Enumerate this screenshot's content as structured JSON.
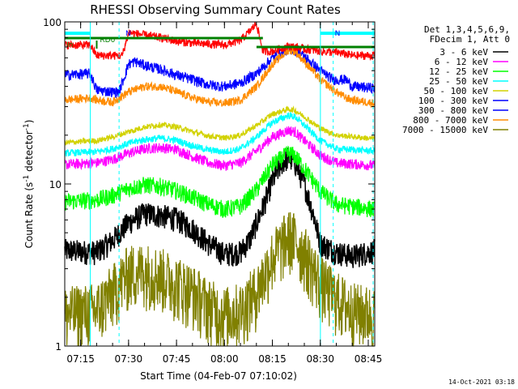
{
  "chart_data": {
    "type": "line",
    "title": "RHESSI Observing Summary Count Rates",
    "xlabel": "Start Time (04-Feb-07 07:10:02)",
    "ylabel": "Count Rate (s",
    "ylabel_sup": "-1",
    "ylabel_mid": " detector",
    "ylabel_end": ")",
    "yscale": "log",
    "ylim": [
      1,
      100
    ],
    "y_tick_labels": [
      "1",
      "10",
      "100"
    ],
    "xlim_minutes": [
      0,
      97
    ],
    "x_tick_labels": [
      "07:15",
      "07:30",
      "07:45",
      "08:00",
      "08:15",
      "08:30",
      "08:45"
    ],
    "x_tick_minutes": [
      4.97,
      19.97,
      34.97,
      49.97,
      64.97,
      79.97,
      94.97
    ],
    "legend_header": [
      "Det 1,3,4,5,6,9,",
      "FDecim 1, Att 0"
    ],
    "series": [
      {
        "name": "3 - 6 keV",
        "color": "#000000",
        "points": [
          [
            0,
            3.9
          ],
          [
            10,
            3.8
          ],
          [
            15,
            4.5
          ],
          [
            20,
            5.8
          ],
          [
            25,
            6.6
          ],
          [
            30,
            6.4
          ],
          [
            35,
            6.1
          ],
          [
            40,
            5.3
          ],
          [
            45,
            4.3
          ],
          [
            50,
            3.7
          ],
          [
            55,
            3.8
          ],
          [
            58,
            4.6
          ],
          [
            62,
            7.2
          ],
          [
            65,
            10.5
          ],
          [
            68,
            13.6
          ],
          [
            70,
            14.6
          ],
          [
            72,
            13.6
          ],
          [
            75,
            10
          ],
          [
            78,
            6.3
          ],
          [
            80,
            4.3
          ],
          [
            85,
            3.8
          ],
          [
            90,
            3.6
          ],
          [
            97,
            3.9
          ]
        ]
      },
      {
        "name": "6 - 12 keV",
        "color": "#ff00ff",
        "points": [
          [
            0,
            13.2
          ],
          [
            10,
            13.5
          ],
          [
            15,
            14.2
          ],
          [
            20,
            15.5
          ],
          [
            25,
            16.5
          ],
          [
            30,
            16.8
          ],
          [
            35,
            16.3
          ],
          [
            40,
            14.8
          ],
          [
            45,
            13.5
          ],
          [
            50,
            13
          ],
          [
            55,
            13.5
          ],
          [
            60,
            16
          ],
          [
            65,
            19.5
          ],
          [
            70,
            21.5
          ],
          [
            72,
            21
          ],
          [
            75,
            18.5
          ],
          [
            80,
            15
          ],
          [
            85,
            13.5
          ],
          [
            97,
            13
          ]
        ]
      },
      {
        "name": "12 - 25 keV",
        "color": "#00ff00",
        "points": [
          [
            0,
            7.8
          ],
          [
            10,
            8
          ],
          [
            15,
            8.5
          ],
          [
            20,
            9.4
          ],
          [
            25,
            9.9
          ],
          [
            30,
            9.7
          ],
          [
            35,
            9.1
          ],
          [
            40,
            8.3
          ],
          [
            45,
            7.5
          ],
          [
            50,
            7
          ],
          [
            55,
            7.3
          ],
          [
            60,
            9.2
          ],
          [
            65,
            13.2
          ],
          [
            70,
            15.5
          ],
          [
            72,
            15
          ],
          [
            75,
            12.5
          ],
          [
            80,
            9
          ],
          [
            85,
            7.5
          ],
          [
            97,
            7
          ]
        ]
      },
      {
        "name": "25 - 50 keV",
        "color": "#00ffff",
        "points": [
          [
            0,
            15.5
          ],
          [
            10,
            15.8
          ],
          [
            15,
            16.5
          ],
          [
            20,
            17.8
          ],
          [
            25,
            18.8
          ],
          [
            30,
            19.2
          ],
          [
            35,
            18.6
          ],
          [
            40,
            17.2
          ],
          [
            45,
            16.2
          ],
          [
            50,
            15.8
          ],
          [
            55,
            16.5
          ],
          [
            60,
            19.5
          ],
          [
            65,
            24
          ],
          [
            70,
            26.5
          ],
          [
            72,
            26
          ],
          [
            75,
            23
          ],
          [
            80,
            18.5
          ],
          [
            85,
            16.5
          ],
          [
            97,
            16
          ]
        ]
      },
      {
        "name": "50 - 100 keV",
        "color": "#d2d200",
        "points": [
          [
            0,
            18
          ],
          [
            10,
            18.5
          ],
          [
            15,
            19.5
          ],
          [
            20,
            21
          ],
          [
            25,
            22.5
          ],
          [
            30,
            23.2
          ],
          [
            35,
            22.5
          ],
          [
            40,
            21
          ],
          [
            45,
            19.8
          ],
          [
            50,
            19.2
          ],
          [
            55,
            20
          ],
          [
            60,
            23
          ],
          [
            65,
            27
          ],
          [
            70,
            29
          ],
          [
            72,
            28.5
          ],
          [
            75,
            26
          ],
          [
            80,
            22
          ],
          [
            85,
            20
          ],
          [
            97,
            19
          ]
        ]
      },
      {
        "name": "100 - 300 keV",
        "color": "#0000ff",
        "points": [
          [
            0,
            47
          ],
          [
            8,
            48
          ],
          [
            10,
            38
          ],
          [
            15,
            37
          ],
          [
            17,
            37
          ],
          [
            20,
            55
          ],
          [
            22,
            57
          ],
          [
            25,
            54
          ],
          [
            30,
            51
          ],
          [
            35,
            47
          ],
          [
            40,
            44
          ],
          [
            45,
            41
          ],
          [
            50,
            40
          ],
          [
            55,
            42
          ],
          [
            60,
            48
          ],
          [
            65,
            60
          ],
          [
            70,
            68
          ],
          [
            72,
            67
          ],
          [
            75,
            61
          ],
          [
            80,
            50
          ],
          [
            84,
            44
          ],
          [
            85,
            44
          ],
          [
            88,
            44
          ],
          [
            90,
            40
          ],
          [
            97,
            39
          ]
        ]
      },
      {
        "name": "300 - 800 keV",
        "color": "#0000ff",
        "points": [
          [
            0,
            42
          ],
          [
            97,
            42
          ]
        ]
      },
      {
        "name": "800 - 7000 keV",
        "color": "#ff8c00",
        "points": [
          [
            0,
            33
          ],
          [
            8,
            34
          ],
          [
            10,
            33
          ],
          [
            15,
            32
          ],
          [
            20,
            37
          ],
          [
            25,
            40
          ],
          [
            30,
            40
          ],
          [
            35,
            37
          ],
          [
            40,
            34
          ],
          [
            45,
            32
          ],
          [
            50,
            31.5
          ],
          [
            55,
            33
          ],
          [
            60,
            40
          ],
          [
            65,
            55
          ],
          [
            70,
            67
          ],
          [
            72,
            66
          ],
          [
            75,
            57
          ],
          [
            80,
            44
          ],
          [
            85,
            37
          ],
          [
            88,
            34
          ],
          [
            90,
            33
          ],
          [
            97,
            31.5
          ]
        ]
      },
      {
        "name": "7000 - 15000 keV",
        "color": "#808000",
        "points": [
          [
            0,
            1.6
          ],
          [
            10,
            1.7
          ],
          [
            15,
            2.2
          ],
          [
            20,
            2.9
          ],
          [
            25,
            3
          ],
          [
            30,
            2.8
          ],
          [
            35,
            2.5
          ],
          [
            40,
            2.2
          ],
          [
            45,
            1.8
          ],
          [
            50,
            1.6
          ],
          [
            55,
            1.7
          ],
          [
            60,
            2.2
          ],
          [
            65,
            3.6
          ],
          [
            70,
            4.8
          ],
          [
            72,
            4.6
          ],
          [
            75,
            3.8
          ],
          [
            80,
            2.5
          ],
          [
            85,
            2
          ],
          [
            90,
            1.7
          ],
          [
            97,
            1.6
          ]
        ]
      }
    ],
    "red_top": {
      "name": "red",
      "color": "#ff0000",
      "points": [
        [
          0,
          72
        ],
        [
          8,
          72
        ],
        [
          10,
          62
        ],
        [
          18,
          62
        ],
        [
          20,
          86
        ],
        [
          25,
          83
        ],
        [
          30,
          80
        ],
        [
          35,
          76
        ],
        [
          40,
          74
        ],
        [
          45,
          73
        ],
        [
          50,
          72
        ],
        [
          55,
          77
        ],
        [
          58,
          88
        ],
        [
          60,
          98
        ],
        [
          62,
          66
        ],
        [
          65,
          66
        ],
        [
          70,
          71
        ],
        [
          72,
          70
        ],
        [
          75,
          68
        ],
        [
          80,
          66
        ],
        [
          84,
          65
        ],
        [
          85,
          65
        ],
        [
          90,
          62
        ],
        [
          97,
          62
        ]
      ]
    },
    "annotations": {
      "rd0": "RD0",
      "n": "N",
      "in": "In",
      "n2": "N"
    },
    "footer_date": "14-Oct-2021 03:18"
  }
}
